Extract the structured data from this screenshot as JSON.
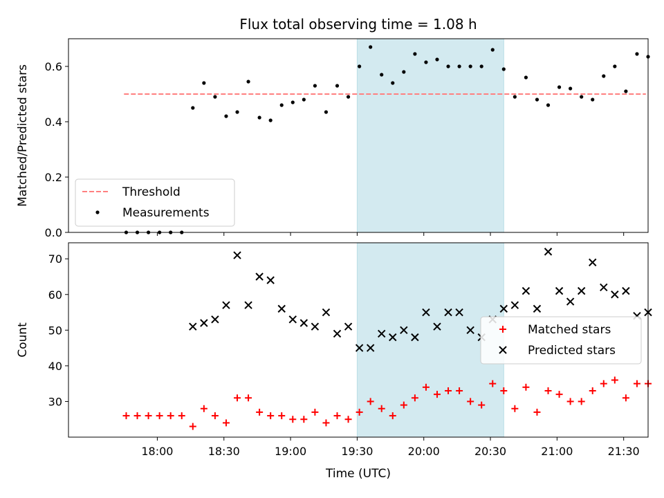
{
  "chart_data": [
    {
      "type": "scatter",
      "title": "Flux total observing time = 1.08 h",
      "xlabel": "",
      "ylabel": "Matched/Predicted stars",
      "xlim_minutes_since_midnight_utc": [
        1040,
        1301
      ],
      "ylim": [
        0,
        0.7
      ],
      "yticks": [
        "0.0",
        "0.2",
        "0.4",
        "0.6"
      ],
      "highlight_span": {
        "start": "19:30",
        "end": "20:36",
        "color": "#d3eaf0"
      },
      "legend": {
        "placement": "lower-left",
        "entries": [
          {
            "label": "Threshold",
            "key": "threshold"
          },
          {
            "label": "Measurements",
            "key": "measurements"
          }
        ]
      },
      "threshold": {
        "label": "Threshold",
        "value": 0.5,
        "x_start": "17:45",
        "x_end": "21:40",
        "color": "#ff7f7f",
        "style": "dashed"
      },
      "series": [
        {
          "name": "Measurements",
          "key": "measurements",
          "marker": "dot",
          "color": "#000000",
          "x": [
            "17:46",
            "17:51",
            "17:56",
            "18:01",
            "18:06",
            "18:11",
            "18:16",
            "18:21",
            "18:26",
            "18:31",
            "18:36",
            "18:41",
            "18:46",
            "18:51",
            "18:56",
            "19:01",
            "19:06",
            "19:11",
            "19:16",
            "19:21",
            "19:26",
            "19:31",
            "19:36",
            "19:41",
            "19:46",
            "19:51",
            "19:56",
            "20:01",
            "20:06",
            "20:11",
            "20:16",
            "20:21",
            "20:26",
            "20:31",
            "20:36",
            "20:41",
            "20:46",
            "20:51",
            "20:56",
            "21:01",
            "21:06",
            "21:11",
            "21:16",
            "21:21",
            "21:26",
            "21:31",
            "21:36",
            "21:41"
          ],
          "y": [
            0.0,
            0.0,
            0.0,
            0.0,
            0.0,
            0.0,
            0.45,
            0.54,
            0.49,
            0.42,
            0.435,
            0.545,
            0.415,
            0.405,
            0.46,
            0.47,
            0.48,
            0.53,
            0.435,
            0.53,
            0.49,
            0.6,
            0.67,
            0.57,
            0.54,
            0.58,
            0.645,
            0.615,
            0.625,
            0.6,
            0.6,
            0.6,
            0.6,
            0.66,
            0.59,
            0.49,
            0.56,
            0.48,
            0.46,
            0.525,
            0.52,
            0.49,
            0.48,
            0.565,
            0.6,
            0.51,
            0.645,
            0.635
          ]
        }
      ]
    },
    {
      "type": "scatter",
      "title": "",
      "xlabel": "Time (UTC)",
      "ylabel": "Count",
      "xlim_minutes_since_midnight_utc": [
        1040,
        1301
      ],
      "ylim": [
        20,
        74.5
      ],
      "yticks": [
        "30",
        "40",
        "50",
        "60",
        "70"
      ],
      "xticks": [
        "18:00",
        "18:30",
        "19:00",
        "19:30",
        "20:00",
        "20:30",
        "21:00",
        "21:30"
      ],
      "highlight_span": {
        "start": "19:30",
        "end": "20:36",
        "color": "#d3eaf0"
      },
      "legend": {
        "placement": "center-right",
        "entries": [
          {
            "label": "Matched stars",
            "key": "matched"
          },
          {
            "label": "Predicted stars",
            "key": "predicted"
          }
        ]
      },
      "series": [
        {
          "name": "Matched stars",
          "key": "matched",
          "marker": "plus",
          "color": "#ff0000",
          "x": [
            "17:46",
            "17:51",
            "17:56",
            "18:01",
            "18:06",
            "18:11",
            "18:16",
            "18:21",
            "18:26",
            "18:31",
            "18:36",
            "18:41",
            "18:46",
            "18:51",
            "18:56",
            "19:01",
            "19:06",
            "19:11",
            "19:16",
            "19:21",
            "19:26",
            "19:31",
            "19:36",
            "19:41",
            "19:46",
            "19:51",
            "19:56",
            "20:01",
            "20:06",
            "20:11",
            "20:16",
            "20:21",
            "20:26",
            "20:31",
            "20:36",
            "20:41",
            "20:46",
            "20:51",
            "20:56",
            "21:01",
            "21:06",
            "21:11",
            "21:16",
            "21:21",
            "21:26",
            "21:31",
            "21:36",
            "21:41"
          ],
          "y": [
            26,
            26,
            26,
            26,
            26,
            26,
            23,
            28,
            26,
            24,
            31,
            31,
            27,
            26,
            26,
            25,
            25,
            27,
            24,
            26,
            25,
            27,
            30,
            28,
            26,
            29,
            31,
            34,
            32,
            33,
            33,
            30,
            29,
            35,
            33,
            28,
            34,
            27,
            33,
            32,
            30,
            30,
            33,
            35,
            36,
            31,
            35,
            35
          ]
        },
        {
          "name": "Predicted stars",
          "key": "predicted",
          "marker": "x",
          "color": "#000000",
          "x": [
            "18:16",
            "18:21",
            "18:26",
            "18:31",
            "18:36",
            "18:41",
            "18:46",
            "18:51",
            "18:56",
            "19:01",
            "19:06",
            "19:11",
            "19:16",
            "19:21",
            "19:26",
            "19:31",
            "19:36",
            "19:41",
            "19:46",
            "19:51",
            "19:56",
            "20:01",
            "20:06",
            "20:11",
            "20:16",
            "20:21",
            "20:26",
            "20:31",
            "20:36",
            "20:41",
            "20:46",
            "20:51",
            "20:56",
            "21:01",
            "21:06",
            "21:11",
            "21:16",
            "21:21",
            "21:26",
            "21:31",
            "21:36",
            "21:41"
          ],
          "y": [
            51,
            52,
            53,
            57,
            71,
            57,
            65,
            64,
            56,
            53,
            52,
            51,
            55,
            49,
            51,
            45,
            45,
            49,
            48,
            50,
            48,
            55,
            51,
            55,
            55,
            50,
            48,
            53,
            56,
            57,
            61,
            56,
            72,
            61,
            58,
            61,
            69,
            62,
            60,
            61,
            54,
            55
          ]
        }
      ]
    }
  ]
}
